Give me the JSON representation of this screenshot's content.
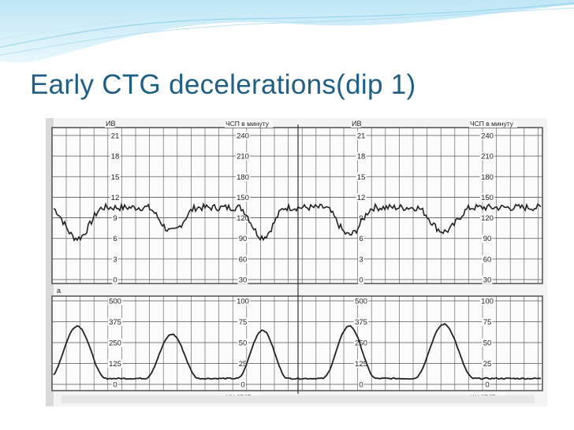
{
  "slide": {
    "title": "Early CTG decelerations(dip 1)"
  },
  "figure": {
    "top_panels": [
      {
        "left_axis_title": "ИВ",
        "right_axis_title": "ЧСП в минуту",
        "left_ticks": [
          "21",
          "18",
          "15",
          "12",
          "9",
          "6",
          "3",
          "0"
        ],
        "right_ticks": [
          "240",
          "210",
          "180",
          "150",
          "120",
          "90",
          "60",
          "30"
        ]
      },
      {
        "left_axis_title": "ИВ",
        "right_axis_title": "ЧСП в минуту",
        "left_ticks": [
          "21",
          "18",
          "15",
          "12",
          "9",
          "6",
          "3",
          "0"
        ],
        "right_ticks": [
          "240",
          "210",
          "180",
          "150",
          "120",
          "90",
          "60",
          "30"
        ]
      }
    ],
    "bottom_panels": [
      {
        "left_ticks": [
          "500",
          "375",
          "250",
          "125",
          "0"
        ],
        "right_ticks": [
          "100",
          "75",
          "50",
          "25",
          "0"
        ],
        "unit_label": "мм рт.ст."
      },
      {
        "left_ticks": [
          "500",
          "375",
          "250",
          "125",
          "0"
        ],
        "right_ticks": [
          "100",
          "75",
          "50",
          "25",
          "0"
        ],
        "unit_label": "мм рт.ст."
      }
    ],
    "panel_marker": "а"
  },
  "chart_data": {
    "type": "line",
    "title": "",
    "fetal_heart_rate": {
      "unit_axis": "ЧСП в минуту",
      "ylim": [
        30,
        240
      ],
      "baseline": 135,
      "dips": [
        {
          "index": 1,
          "min_bpm": 90
        },
        {
          "index": 2,
          "min_bpm": 100
        },
        {
          "index": 3,
          "min_bpm": 92
        },
        {
          "index": 4,
          "min_bpm": 95
        },
        {
          "index": 5,
          "min_bpm": 100
        }
      ]
    },
    "uterine_pressure": {
      "unit_axis": "мм рт.ст.",
      "ylim": [
        0,
        100
      ],
      "baseline": 7,
      "contractions": [
        {
          "index": 1,
          "peak": 70
        },
        {
          "index": 2,
          "peak": 60
        },
        {
          "index": 3,
          "peak": 65
        },
        {
          "index": 4,
          "peak": 70
        },
        {
          "index": 5,
          "peak": 72
        }
      ]
    }
  }
}
